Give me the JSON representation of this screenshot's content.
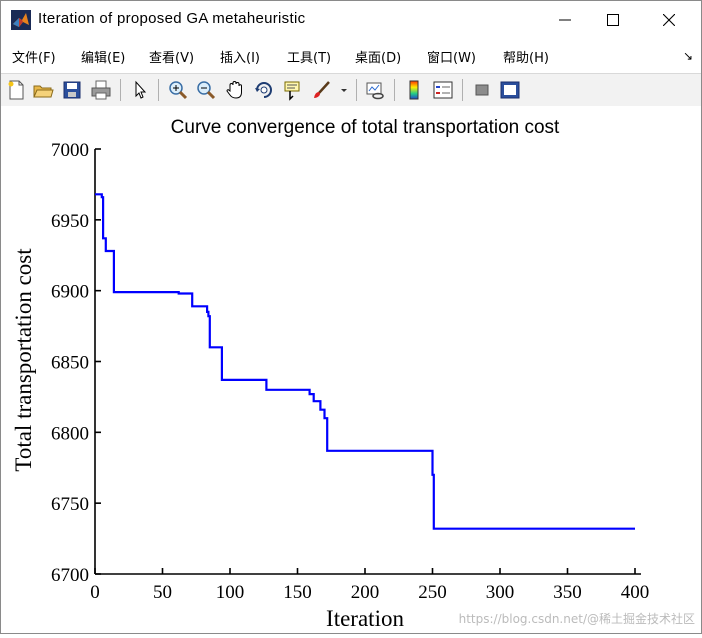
{
  "window": {
    "title": "Iteration  of  proposed  GA  metaheuristic",
    "icon": "matlab-icon",
    "controls": [
      "minimize-icon",
      "maximize-icon",
      "close-icon"
    ]
  },
  "menu": {
    "items": [
      {
        "label": "文件(F)"
      },
      {
        "label": "编辑(E)"
      },
      {
        "label": "查看(V)"
      },
      {
        "label": "插入(I)"
      },
      {
        "label": "工具(T)"
      },
      {
        "label": "桌面(D)"
      },
      {
        "label": "窗口(W)"
      },
      {
        "label": "帮助(H)"
      }
    ],
    "extra": "↘"
  },
  "toolbar": {
    "buttons": [
      "new-figure-icon",
      "open-icon",
      "save-icon",
      "print-icon",
      "edit-plot-arrow-icon",
      "zoom-in-icon",
      "zoom-out-icon",
      "pan-hand-icon",
      "rotate-3d-icon",
      "data-cursor-icon",
      "brush-icon",
      "link-plot-icon",
      "colorbar-icon",
      "legend-icon",
      "hide-plot-tools-icon",
      "show-plot-tools-icon"
    ]
  },
  "chart_data": {
    "type": "line",
    "title": "Curve convergence of   total transportation cost",
    "xlabel": "Iteration",
    "ylabel": "Total transportation cost",
    "xlim": [
      0,
      400
    ],
    "ylim": [
      6700,
      7000
    ],
    "xticks": [
      "0",
      "50",
      "100",
      "150",
      "200",
      "250",
      "300",
      "350",
      "400"
    ],
    "yticks": [
      "6700",
      "6750",
      "6800",
      "6850",
      "6900",
      "6950",
      "7000"
    ],
    "grid": false,
    "line_color": "#0000ff",
    "series": [
      {
        "x": [
          0,
          5,
          5,
          6,
          6,
          8,
          8,
          14,
          14,
          62,
          62,
          72,
          72,
          83,
          83,
          84,
          84,
          85,
          85,
          94,
          94,
          127,
          127,
          159,
          159,
          162,
          162,
          167,
          167,
          170,
          170,
          172,
          172,
          250,
          250,
          251,
          251,
          400
        ],
        "y": [
          6968,
          6968,
          6966,
          6966,
          6937,
          6937,
          6928,
          6928,
          6899,
          6899,
          6898,
          6898,
          6889,
          6889,
          6885,
          6885,
          6882,
          6882,
          6860,
          6860,
          6837,
          6837,
          6830,
          6830,
          6827,
          6827,
          6822,
          6822,
          6816,
          6816,
          6810,
          6810,
          6787,
          6787,
          6770,
          6770,
          6732,
          6732
        ]
      }
    ]
  },
  "watermark": "https://blog.csdn.net/@稀土掘金技术社区"
}
